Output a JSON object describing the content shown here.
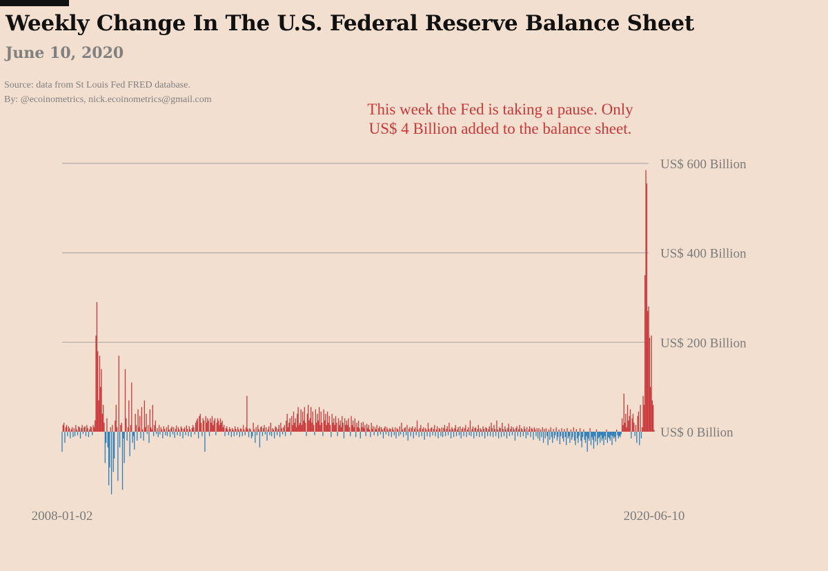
{
  "header": {
    "title": "Weekly Change In The U.S. Federal Reserve Balance Sheet",
    "date": "June 10, 2020",
    "source": "Source: data from  St Louis Fed FRED database.",
    "by": "By: @ecoinometrics, nick.ecoinometrics@gmail.com"
  },
  "annotation": {
    "line1": "This week the Fed is taking a pause. Only",
    "line2": "US$ 4 Billion added to the balance sheet."
  },
  "chart_data": {
    "type": "bar",
    "title": "Weekly Change In The U.S. Federal Reserve Balance Sheet",
    "subtitle": "June 10, 2020",
    "xlabel": "",
    "ylabel": "",
    "unit": "US$ Billion",
    "frequency": "weekly",
    "x_start": "2008-01-02",
    "x_end": "2020-06-10",
    "x_ticks": [
      "2008-01-02",
      "2020-06-10"
    ],
    "y_ticks": [
      0,
      200,
      400,
      600
    ],
    "y_tick_labels": [
      "US$ 0 Billion",
      "US$ 200 Billion",
      "US$ 400 Billion",
      "US$ 600 Billion"
    ],
    "ylim": [
      -160,
      610
    ],
    "grid": "horizontal",
    "colors": {
      "positive": "#c8383a",
      "negative": "#2b7db8",
      "grid": "#b0aaa6"
    },
    "values": [
      -45,
      15,
      20,
      -25,
      10,
      15,
      -10,
      12,
      8,
      -15,
      5,
      10,
      -12,
      8,
      -10,
      15,
      5,
      -8,
      12,
      10,
      -15,
      8,
      15,
      -5,
      10,
      12,
      -10,
      15,
      8,
      -12,
      5,
      12,
      10,
      -8,
      15,
      10,
      25,
      215,
      290,
      180,
      70,
      170,
      100,
      140,
      40,
      60,
      20,
      -70,
      -25,
      30,
      -35,
      -120,
      -80,
      10,
      -140,
      15,
      -90,
      -60,
      25,
      60,
      10,
      -110,
      170,
      -35,
      15,
      20,
      -130,
      -15,
      -70,
      140,
      30,
      -20,
      10,
      70,
      -55,
      15,
      110,
      -25,
      -10,
      -40,
      40,
      15,
      -20,
      50,
      10,
      35,
      -15,
      55,
      5,
      -20,
      70,
      10,
      40,
      -5,
      15,
      -25,
      50,
      10,
      5,
      60,
      -10,
      15,
      25,
      -5,
      8,
      -12,
      15,
      -6,
      10,
      5,
      -15,
      12,
      6,
      -8,
      10,
      -10,
      15,
      5,
      -12,
      8,
      12,
      -6,
      10,
      -14,
      6,
      14,
      -8,
      10,
      5,
      -10,
      12,
      8,
      -15,
      6,
      10,
      -8,
      14,
      6,
      -10,
      12,
      5,
      -12,
      8,
      15,
      10,
      -6,
      20,
      25,
      30,
      -15,
      35,
      40,
      20,
      -10,
      30,
      25,
      -45,
      35,
      20,
      30,
      25,
      -10,
      30,
      20,
      35,
      15,
      25,
      30,
      -8,
      20,
      30,
      25,
      15,
      30,
      20,
      25,
      10,
      15,
      -10,
      8,
      12,
      5,
      -8,
      10,
      6,
      -12,
      8,
      5,
      -10,
      12,
      6,
      -8,
      10,
      5,
      -12,
      8,
      6,
      -10,
      15,
      5,
      -8,
      10,
      80,
      6,
      -12,
      8,
      5,
      -15,
      -10,
      20,
      5,
      -25,
      10,
      -8,
      15,
      5,
      -35,
      10,
      12,
      -10,
      8,
      15,
      -6,
      10,
      -20,
      5,
      12,
      -8,
      20,
      -10,
      8,
      5,
      -15,
      12,
      10,
      -8,
      6,
      15,
      -12,
      20,
      8,
      -6,
      10,
      15,
      -10,
      25,
      40,
      10,
      20,
      30,
      -8,
      35,
      15,
      45,
      20,
      30,
      10,
      40,
      55,
      15,
      20,
      50,
      15,
      45,
      25,
      55,
      20,
      -10,
      40,
      60,
      25,
      30,
      55,
      20,
      45,
      15,
      -8,
      50,
      20,
      40,
      25,
      55,
      15,
      45,
      20,
      -10,
      50,
      25,
      40,
      15,
      45,
      20,
      35,
      15,
      -12,
      40,
      20,
      30,
      15,
      35,
      20,
      -10,
      30,
      15,
      25,
      10,
      35,
      20,
      -15,
      30,
      15,
      25,
      15,
      30,
      10,
      -10,
      35,
      15,
      25,
      10,
      30,
      -12,
      20,
      10,
      25,
      8,
      -15,
      20,
      10,
      22,
      8,
      15,
      -10,
      18,
      8,
      15,
      5,
      -12,
      20,
      6,
      12,
      -8,
      10,
      5,
      15,
      -10,
      8,
      12,
      -6,
      10,
      5,
      -15,
      8,
      12,
      -6,
      10,
      5,
      -10,
      8,
      6,
      -12,
      10,
      5,
      -8,
      10,
      -15,
      8,
      5,
      -10,
      12,
      -6,
      20,
      5,
      -12,
      8,
      10,
      -8,
      15,
      -20,
      6,
      10,
      -10,
      8,
      12,
      -15,
      6,
      10,
      -8,
      25,
      5,
      -12,
      8,
      15,
      -10,
      6,
      10,
      -18,
      8,
      5,
      -10,
      20,
      6,
      -12,
      8,
      10,
      -8,
      6,
      15,
      -10,
      5,
      12,
      -15,
      8,
      6,
      -10,
      10,
      -12,
      8,
      15,
      -10,
      6,
      12,
      -8,
      20,
      5,
      -15,
      10,
      6,
      -12,
      8,
      15,
      -10,
      5,
      10,
      -8,
      12,
      -15,
      6,
      10,
      -10,
      8,
      15,
      -12,
      5,
      10,
      -8,
      25,
      -10,
      6,
      12,
      -15,
      8,
      10,
      -10,
      6,
      15,
      -12,
      8,
      5,
      -10,
      12,
      6,
      -15,
      10,
      8,
      -10,
      6,
      12,
      -10,
      20,
      8,
      -12,
      15,
      6,
      -10,
      25,
      5,
      -15,
      10,
      8,
      -12,
      20,
      6,
      -10,
      12,
      5,
      -15,
      8,
      18,
      -10,
      6,
      12,
      -8,
      10,
      5,
      -20,
      8,
      12,
      -10,
      6,
      15,
      -12,
      8,
      5,
      -10,
      12,
      6,
      -15,
      10,
      -8,
      5,
      12,
      -12,
      8,
      6,
      -18,
      10,
      5,
      -10,
      8,
      -15,
      8,
      -20,
      5,
      -12,
      10,
      -25,
      6,
      -15,
      8,
      -10,
      -30,
      5,
      -18,
      10,
      -12,
      -25,
      6,
      -15,
      -8,
      10,
      -20,
      -12,
      5,
      -28,
      -10,
      8,
      -15,
      -22,
      6,
      -12,
      -30,
      8,
      -15,
      -10,
      -25,
      5,
      -18,
      -12,
      10,
      -20,
      -30,
      6,
      -15,
      -25,
      -10,
      8,
      -20,
      -35,
      -12,
      5,
      -18,
      -25,
      -10,
      -45,
      -15,
      -20,
      8,
      -30,
      -12,
      -18,
      -38,
      -10,
      -22,
      5,
      -30,
      -15,
      -12,
      -25,
      -8,
      -20,
      -15,
      -30,
      -10,
      -18,
      5,
      -25,
      -12,
      -15,
      -20,
      -8,
      -30,
      -10,
      -15,
      -12,
      -22,
      5,
      -8,
      -15,
      -10,
      -12,
      -6,
      30,
      15,
      85,
      20,
      40,
      10,
      60,
      25,
      35,
      50,
      -15,
      30,
      40,
      20,
      -10,
      15,
      -25,
      35,
      45,
      -30,
      60,
      -15,
      10,
      80,
      60,
      350,
      585,
      555,
      270,
      280,
      210,
      100,
      215,
      70,
      60,
      4
    ]
  }
}
